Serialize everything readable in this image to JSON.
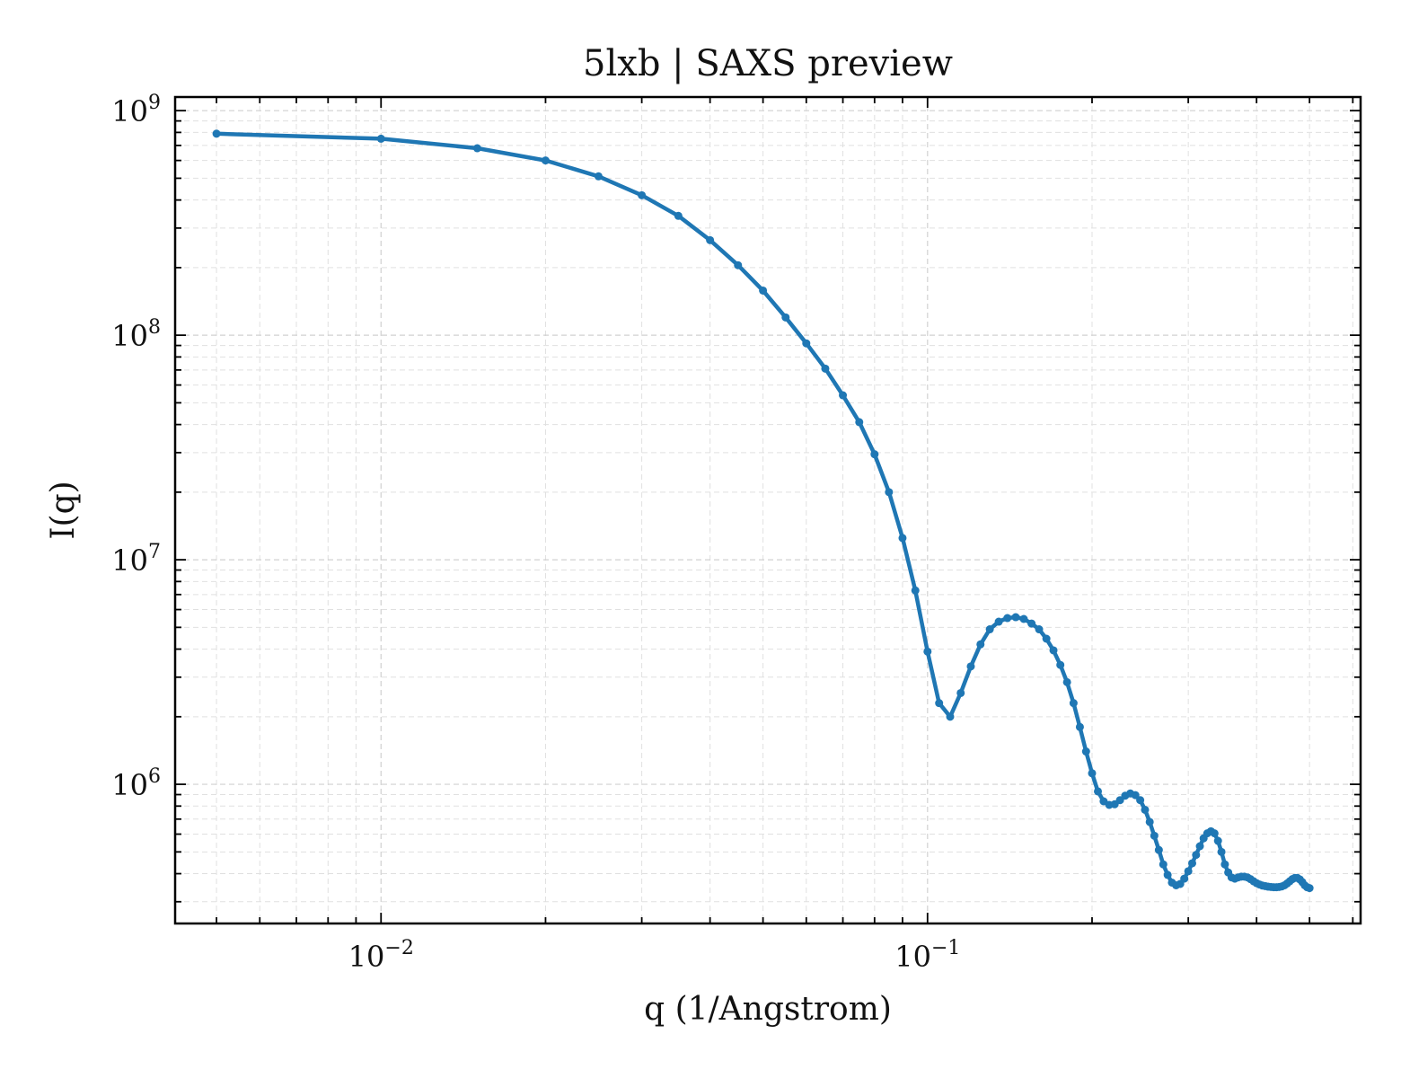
{
  "chart_data": {
    "type": "line",
    "title": "5lxb | SAXS preview",
    "xlabel": "q (1/Angstrom)",
    "ylabel": "I(q)",
    "x_scale": "log",
    "y_scale": "log",
    "xlim": [
      0.0042,
      0.62
    ],
    "ylim": [
      240000,
      1150000000
    ],
    "x_ticks": [
      {
        "value": 0.01,
        "base": "10",
        "exp": "−2"
      },
      {
        "value": 0.1,
        "base": "10",
        "exp": "−1"
      }
    ],
    "y_ticks": [
      {
        "value": 1000000,
        "base": "10",
        "exp": "6"
      },
      {
        "value": 10000000,
        "base": "10",
        "exp": "7"
      },
      {
        "value": 100000000,
        "base": "10",
        "exp": "8"
      },
      {
        "value": 1000000000,
        "base": "10",
        "exp": "9"
      }
    ],
    "grid": true,
    "color": "#1f77b4",
    "series": [
      {
        "x": [
          0.005,
          0.01,
          0.015,
          0.02,
          0.025,
          0.03,
          0.035,
          0.04,
          0.045,
          0.05,
          0.055,
          0.06,
          0.065,
          0.07,
          0.075,
          0.08,
          0.085,
          0.09,
          0.095,
          0.1,
          0.105,
          0.11,
          0.115,
          0.12,
          0.125,
          0.13,
          0.135,
          0.14,
          0.145,
          0.15,
          0.155,
          0.16,
          0.165,
          0.17,
          0.175,
          0.18,
          0.185,
          0.19,
          0.195,
          0.2,
          0.205,
          0.21,
          0.215,
          0.22,
          0.225,
          0.23,
          0.235,
          0.24,
          0.245,
          0.25,
          0.255,
          0.26,
          0.265,
          0.27,
          0.275,
          0.28,
          0.285,
          0.29,
          0.295,
          0.3,
          0.305,
          0.31,
          0.315,
          0.32,
          0.325,
          0.33,
          0.335,
          0.34,
          0.345,
          0.35,
          0.355,
          0.36,
          0.365,
          0.37,
          0.375,
          0.38,
          0.385,
          0.39,
          0.395,
          0.4,
          0.405,
          0.41,
          0.415,
          0.42,
          0.425,
          0.43,
          0.435,
          0.44,
          0.445,
          0.45,
          0.455,
          0.46,
          0.465,
          0.47,
          0.475,
          0.48,
          0.485,
          0.49,
          0.495,
          0.5
        ],
        "y": [
          790000000,
          750000000,
          680000000,
          600000000,
          510000000,
          420000000,
          340000000,
          265000000,
          205000000,
          158000000,
          120000000,
          92000000,
          71000000,
          54000000,
          41000000,
          29500000,
          20000000,
          12500000,
          7300000,
          3900000,
          2300000,
          2000000,
          2550000,
          3350000,
          4200000,
          4900000,
          5300000,
          5500000,
          5550000,
          5450000,
          5200000,
          4900000,
          4450000,
          3950000,
          3400000,
          2850000,
          2300000,
          1800000,
          1400000,
          1120000,
          930000,
          840000,
          810000,
          815000,
          850000,
          890000,
          910000,
          895000,
          850000,
          770000,
          680000,
          590000,
          510000,
          440000,
          395000,
          365000,
          355000,
          360000,
          380000,
          410000,
          445000,
          485000,
          530000,
          575000,
          605000,
          618000,
          605000,
          560000,
          500000,
          440000,
          405000,
          385000,
          380000,
          385000,
          388000,
          388000,
          385000,
          378000,
          370000,
          363000,
          358000,
          354000,
          352000,
          350000,
          349000,
          348000,
          348000,
          349000,
          351000,
          355000,
          362000,
          370000,
          378000,
          383000,
          383000,
          377000,
          367000,
          355000,
          348000,
          345000
        ]
      }
    ]
  }
}
